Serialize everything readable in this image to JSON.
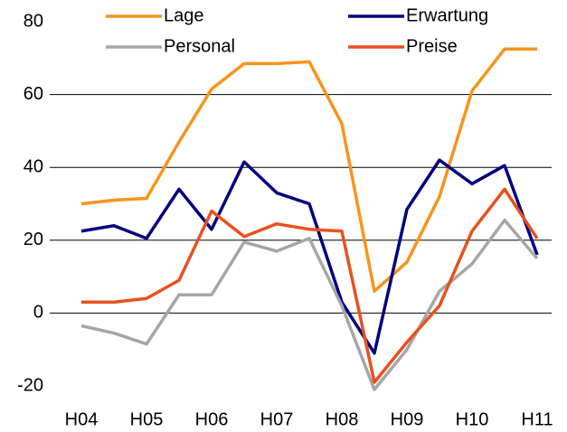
{
  "chart_data": {
    "type": "line",
    "categories": [
      "H04",
      null,
      "H05",
      null,
      "H06",
      null,
      "H07",
      null,
      "H08",
      null,
      "H09",
      null,
      "H10",
      null,
      "H11"
    ],
    "series": [
      {
        "name": "Lage",
        "color": "#f7941d",
        "values": [
          30,
          31,
          31.5,
          47,
          61.5,
          68.5,
          68.5,
          69,
          52,
          6,
          14,
          32,
          61,
          72.5,
          72.5
        ]
      },
      {
        "name": "Erwartung",
        "color": "#00007f",
        "values": [
          22.5,
          24,
          20.5,
          34,
          23,
          41.5,
          33,
          30,
          3,
          -11,
          28.5,
          42,
          35.5,
          40.5,
          16
        ]
      },
      {
        "name": "Personal",
        "color": "#a6a6a6",
        "values": [
          -3.5,
          -5.5,
          -8.5,
          5,
          5,
          19.5,
          17,
          20.5,
          2,
          -21,
          -10,
          6,
          13.5,
          25.5,
          15
        ]
      },
      {
        "name": "Preise",
        "color": "#e8511f",
        "values": [
          3,
          3,
          4,
          9,
          28,
          21,
          24.5,
          23,
          22.5,
          -19,
          -8,
          2,
          22.5,
          34,
          20.5
        ]
      }
    ],
    "ylim": [
      -20,
      80
    ],
    "yticks": [
      -20,
      0,
      20,
      40,
      60,
      80
    ],
    "grid": true
  }
}
